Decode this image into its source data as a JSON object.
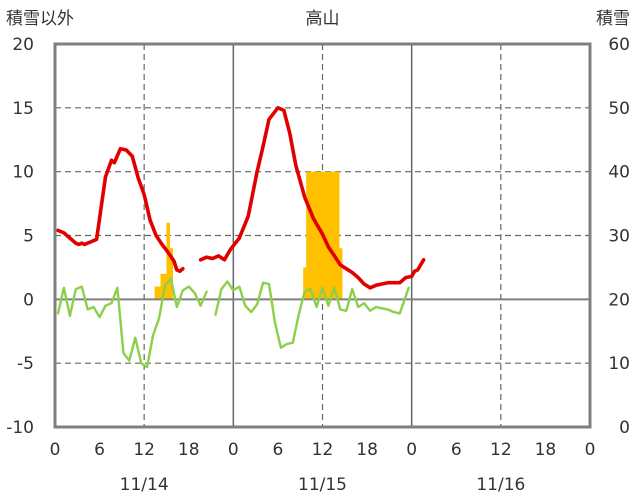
{
  "chart_data": {
    "type": "line+bar",
    "title": "高山",
    "left_axis": {
      "label": "積雪以外",
      "ylim": [
        -10,
        20
      ],
      "ticks": [
        "20",
        "15",
        "10",
        "5",
        "0",
        "-5",
        "-10"
      ]
    },
    "right_axis": {
      "label": "積雪",
      "ylim": [
        0,
        60
      ],
      "ticks": [
        "60",
        "50",
        "40",
        "30",
        "20",
        "10",
        "0"
      ]
    },
    "x_axis": {
      "range_hours": [
        0,
        180
      ],
      "hour_ticks": [
        "0",
        "6",
        "12",
        "18",
        "0",
        "6",
        "12",
        "18",
        "0",
        "6",
        "12",
        "18",
        "0"
      ],
      "date_labels": [
        {
          "text": "11/14",
          "hour": 30
        },
        {
          "text": "11/15",
          "hour": 90
        },
        {
          "text": "11/16",
          "hour": 150
        }
      ]
    },
    "grid": {
      "solid_hours": [
        60,
        120
      ],
      "dashed_hours": [
        30,
        90,
        150
      ],
      "dashed_values": [
        15,
        10,
        5,
        -5
      ]
    },
    "series": [
      {
        "axis": "left",
        "kind": "line",
        "color": "#e00000",
        "segments": [
          [
            [
              1,
              5.4
            ],
            [
              3,
              5.2
            ],
            [
              5,
              4.8
            ],
            [
              7,
              4.4
            ],
            [
              8,
              4.3
            ],
            [
              9,
              4.4
            ],
            [
              10,
              4.3
            ],
            [
              12,
              4.5
            ],
            [
              14,
              4.7
            ],
            [
              17,
              9.6
            ],
            [
              19,
              10.9
            ],
            [
              20,
              10.7
            ],
            [
              22,
              11.8
            ],
            [
              24,
              11.7
            ],
            [
              26,
              11.2
            ],
            [
              28,
              9.5
            ],
            [
              30,
              8.2
            ],
            [
              32,
              6.2
            ],
            [
              34,
              5.0
            ],
            [
              36,
              4.3
            ],
            [
              38,
              3.7
            ],
            [
              40,
              3.0
            ],
            [
              41,
              2.3
            ],
            [
              42,
              2.2
            ],
            [
              43,
              2.4
            ]
          ],
          [
            [
              49,
              3.1
            ],
            [
              51,
              3.3
            ],
            [
              53,
              3.2
            ],
            [
              55,
              3.4
            ],
            [
              57,
              3.1
            ],
            [
              59,
              3.9
            ],
            [
              62,
              4.8
            ],
            [
              65,
              6.5
            ],
            [
              68,
              10.0
            ],
            [
              70,
              12.0
            ],
            [
              72,
              14.1
            ],
            [
              75,
              15.0
            ],
            [
              77,
              14.8
            ],
            [
              79,
              13.0
            ],
            [
              81,
              10.5
            ],
            [
              84,
              8.0
            ],
            [
              87,
              6.3
            ],
            [
              90,
              5.1
            ],
            [
              92,
              4.1
            ],
            [
              94,
              3.4
            ],
            [
              96,
              2.7
            ],
            [
              98,
              2.4
            ],
            [
              100,
              2.1
            ],
            [
              102,
              1.7
            ],
            [
              104,
              1.2
            ],
            [
              106,
              0.9
            ],
            [
              108,
              1.1
            ],
            [
              110,
              1.2
            ],
            [
              112,
              1.3
            ],
            [
              114,
              1.3
            ],
            [
              116,
              1.3
            ],
            [
              118,
              1.7
            ],
            [
              120,
              1.8
            ],
            [
              121,
              2.2
            ],
            [
              122,
              2.3
            ],
            [
              124,
              3.1
            ]
          ]
        ]
      },
      {
        "axis": "left",
        "kind": "line",
        "color": "#8ccf4a",
        "segments": [
          [
            [
              1,
              -1.1
            ],
            [
              3,
              0.9
            ],
            [
              5,
              -1.3
            ],
            [
              7,
              0.8
            ],
            [
              9,
              1.0
            ],
            [
              11,
              -0.8
            ],
            [
              13,
              -0.6
            ],
            [
              15,
              -1.4
            ],
            [
              17,
              -0.5
            ],
            [
              19,
              -0.3
            ],
            [
              21,
              0.9
            ],
            [
              23,
              -4.2
            ],
            [
              25,
              -4.8
            ],
            [
              27,
              -3.0
            ],
            [
              29,
              -5.0
            ],
            [
              31,
              -5.3
            ],
            [
              33,
              -2.8
            ],
            [
              35,
              -1.5
            ],
            [
              37,
              1.1
            ],
            [
              39,
              1.6
            ],
            [
              41,
              -0.6
            ],
            [
              43,
              0.7
            ],
            [
              45,
              1.0
            ],
            [
              47,
              0.5
            ],
            [
              49,
              -0.5
            ],
            [
              51,
              0.6
            ]
          ],
          [
            [
              54,
              -1.2
            ],
            [
              56,
              0.8
            ],
            [
              58,
              1.4
            ],
            [
              60,
              0.7
            ],
            [
              62,
              1.0
            ],
            [
              64,
              -0.5
            ],
            [
              66,
              -1.0
            ],
            [
              68,
              -0.4
            ],
            [
              70,
              1.3
            ],
            [
              72,
              1.2
            ],
            [
              74,
              -1.8
            ],
            [
              76,
              -3.8
            ],
            [
              78,
              -3.5
            ],
            [
              80,
              -3.4
            ],
            [
              82,
              -1.2
            ],
            [
              84,
              0.6
            ],
            [
              86,
              0.8
            ],
            [
              88,
              -0.6
            ],
            [
              90,
              0.9
            ],
            [
              92,
              -0.5
            ],
            [
              94,
              0.9
            ],
            [
              96,
              -0.8
            ],
            [
              98,
              -0.9
            ],
            [
              100,
              0.8
            ],
            [
              102,
              -0.6
            ],
            [
              104,
              -0.3
            ],
            [
              106,
              -0.9
            ],
            [
              108,
              -0.6
            ],
            [
              110,
              -0.7
            ],
            [
              112,
              -0.8
            ],
            [
              114,
              -1.0
            ],
            [
              116,
              -1.1
            ],
            [
              119,
              0.9
            ]
          ]
        ]
      },
      {
        "axis": "right",
        "kind": "bar",
        "color": "#ffc000",
        "bars": [
          [
            34,
            22
          ],
          [
            35,
            22
          ],
          [
            36,
            24
          ],
          [
            37,
            24
          ],
          [
            38,
            32
          ],
          [
            39,
            28
          ],
          [
            84,
            25
          ],
          [
            85,
            40
          ],
          [
            86,
            40
          ],
          [
            87,
            40
          ],
          [
            88,
            40
          ],
          [
            89,
            40
          ],
          [
            90,
            40
          ],
          [
            91,
            40
          ],
          [
            92,
            40
          ],
          [
            93,
            40
          ],
          [
            94,
            40
          ],
          [
            95,
            40
          ],
          [
            96,
            28
          ]
        ]
      },
      {
        "axis": "right",
        "kind": "line",
        "color": "#7030a0",
        "segments": [
          [
            [
              1,
              0
            ],
            [
              43,
              0
            ]
          ],
          [
            [
              49,
              0
            ],
            [
              124,
              0
            ]
          ]
        ]
      }
    ]
  }
}
